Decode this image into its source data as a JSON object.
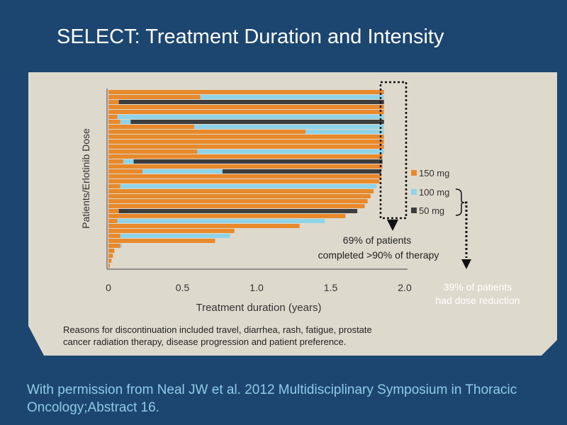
{
  "slide": {
    "title": "SELECT: Treatment Duration and Intensity",
    "footer": "With permission from Neal JW et al. 2012 Multidisciplinary Symposium in Thoracic Oncology;Abstract 16."
  },
  "colors": {
    "background": "#1c4670",
    "panel": "#ded9cd",
    "dose_150": "#e8892b",
    "dose_100": "#8fd3e8",
    "dose_50": "#3d3d3d"
  },
  "chart_data": {
    "type": "bar",
    "orientation": "horizontal",
    "xlabel": "Treatment duration (years)",
    "ylabel": "Patients/Erlotinib Dose",
    "xlim": [
      0,
      2.0
    ],
    "xticks": [
      "0",
      "0.5",
      "1.0",
      "1.5",
      "2.0"
    ],
    "legend": {
      "placement": "right",
      "entries": [
        {
          "label": "150 mg",
          "color": "#e8892b"
        },
        {
          "label": "100 mg",
          "color": "#8fd3e8"
        },
        {
          "label": "50 mg",
          "color": "#3d3d3d"
        }
      ]
    },
    "patients": [
      {
        "segments": [
          [
            0,
            1.86,
            "150"
          ]
        ]
      },
      {
        "segments": [
          [
            0,
            0.62,
            "150"
          ],
          [
            0.62,
            1.86,
            "100"
          ]
        ]
      },
      {
        "segments": [
          [
            0,
            0.07,
            "150"
          ],
          [
            0.07,
            1.86,
            "50"
          ]
        ]
      },
      {
        "segments": [
          [
            0,
            1.86,
            "150"
          ]
        ]
      },
      {
        "segments": [
          [
            0,
            1.86,
            "150"
          ]
        ]
      },
      {
        "segments": [
          [
            0,
            0.06,
            "150"
          ],
          [
            0.06,
            1.86,
            "100"
          ]
        ]
      },
      {
        "segments": [
          [
            0,
            0.08,
            "150"
          ],
          [
            0.08,
            0.15,
            "100"
          ],
          [
            0.15,
            1.86,
            "50"
          ]
        ]
      },
      {
        "segments": [
          [
            0,
            0.58,
            "150"
          ],
          [
            0.58,
            1.86,
            "100"
          ]
        ]
      },
      {
        "segments": [
          [
            0,
            1.33,
            "150"
          ],
          [
            1.33,
            1.86,
            "100"
          ]
        ]
      },
      {
        "segments": [
          [
            0,
            1.86,
            "150"
          ]
        ]
      },
      {
        "segments": [
          [
            0,
            1.86,
            "150"
          ]
        ]
      },
      {
        "segments": [
          [
            0,
            1.86,
            "150"
          ]
        ]
      },
      {
        "segments": [
          [
            0,
            0.6,
            "150"
          ],
          [
            0.6,
            1.86,
            "100"
          ]
        ]
      },
      {
        "segments": [
          [
            0,
            1.85,
            "150"
          ]
        ]
      },
      {
        "segments": [
          [
            0,
            0.1,
            "150"
          ],
          [
            0.1,
            0.17,
            "100"
          ],
          [
            0.17,
            1.85,
            "50"
          ]
        ]
      },
      {
        "segments": [
          [
            0,
            1.85,
            "150"
          ]
        ]
      },
      {
        "segments": [
          [
            0,
            0.23,
            "150"
          ],
          [
            0.23,
            0.77,
            "100"
          ],
          [
            0.77,
            1.84,
            "50"
          ]
        ]
      },
      {
        "segments": [
          [
            0,
            1.84,
            "150"
          ]
        ]
      },
      {
        "segments": [
          [
            0,
            1.83,
            "150"
          ]
        ]
      },
      {
        "segments": [
          [
            0,
            0.08,
            "150"
          ],
          [
            0.08,
            1.81,
            "100"
          ]
        ]
      },
      {
        "segments": [
          [
            0,
            1.79,
            "150"
          ]
        ]
      },
      {
        "segments": [
          [
            0,
            1.77,
            "150"
          ]
        ]
      },
      {
        "segments": [
          [
            0,
            1.75,
            "150"
          ]
        ]
      },
      {
        "segments": [
          [
            0,
            1.73,
            "150"
          ]
        ]
      },
      {
        "segments": [
          [
            0,
            0.07,
            "150"
          ],
          [
            0.07,
            1.68,
            "50"
          ]
        ]
      },
      {
        "segments": [
          [
            0,
            1.6,
            "150"
          ]
        ]
      },
      {
        "segments": [
          [
            0,
            0.06,
            "150"
          ],
          [
            0.06,
            1.46,
            "100"
          ]
        ]
      },
      {
        "segments": [
          [
            0,
            1.29,
            "150"
          ]
        ]
      },
      {
        "segments": [
          [
            0,
            0.85,
            "150"
          ]
        ]
      },
      {
        "segments": [
          [
            0,
            0.08,
            "150"
          ],
          [
            0.08,
            0.82,
            "100"
          ]
        ]
      },
      {
        "segments": [
          [
            0,
            0.72,
            "150"
          ]
        ]
      },
      {
        "segments": [
          [
            0,
            0.08,
            "150"
          ],
          [
            0.08,
            0.09,
            "100"
          ]
        ]
      },
      {
        "segments": [
          [
            0,
            0.04,
            "150"
          ]
        ]
      },
      {
        "segments": [
          [
            0,
            0.03,
            "150"
          ]
        ]
      },
      {
        "segments": [
          [
            0,
            0.02,
            "150"
          ]
        ]
      },
      {
        "segments": [
          [
            0,
            0.01,
            "150"
          ]
        ]
      }
    ],
    "annotations": {
      "completion": "69% of patients completed >90% of therapy",
      "dose_reduction": "39% of patients had dose reduction"
    },
    "note": "Reasons for discontinuation included travel, diarrhea, rash, fatigue, prostate cancer radiation therapy, disease progression and patient preference."
  }
}
